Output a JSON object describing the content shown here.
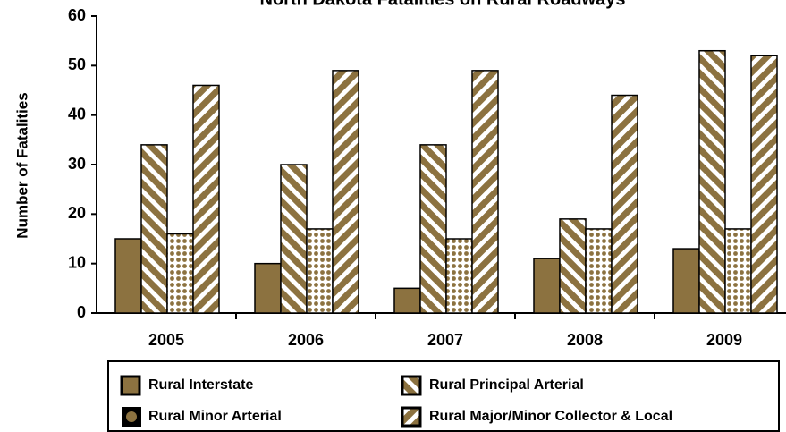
{
  "chart_data": {
    "type": "bar",
    "title": "North Dakota Fatalities on Rural Roadways",
    "ylabel": "Number of Fatalities",
    "categories": [
      "2005",
      "2006",
      "2007",
      "2008",
      "2009"
    ],
    "series": [
      {
        "name": "Rural Interstate",
        "color": "#8c7240",
        "pattern": "solid",
        "values": [
          15,
          10,
          5,
          11,
          13
        ]
      },
      {
        "name": "Rural Principal Arterial",
        "color": "#8c7240",
        "pattern": "backslash",
        "values": [
          34,
          30,
          34,
          19,
          53
        ]
      },
      {
        "name": "Rural Minor Arterial",
        "color": "#8c7240",
        "pattern": "dots",
        "values": [
          16,
          17,
          15,
          17,
          17
        ]
      },
      {
        "name": "Rural Major/Minor Collector & Local",
        "color": "#8c7240",
        "pattern": "slash",
        "values": [
          46,
          49,
          49,
          44,
          52
        ]
      }
    ],
    "ylim": [
      0,
      60
    ],
    "yticks": [
      0,
      10,
      20,
      30,
      40,
      50,
      60
    ],
    "grid": false
  }
}
